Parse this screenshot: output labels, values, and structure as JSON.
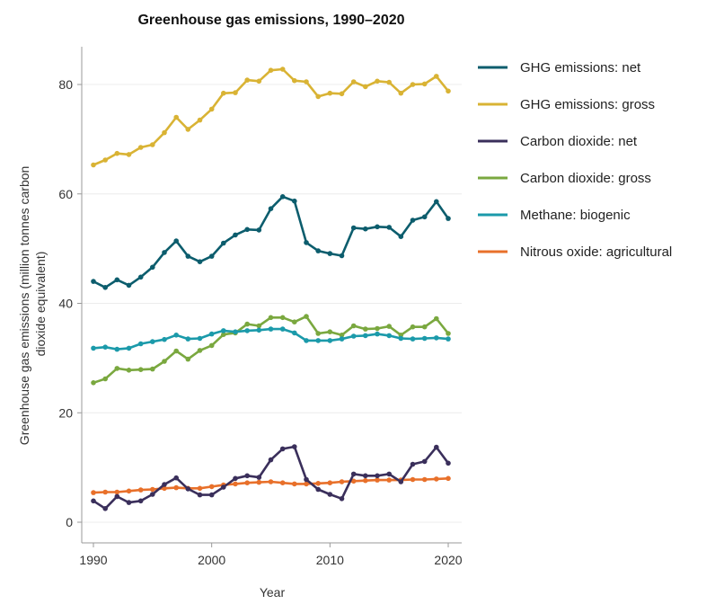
{
  "chart_data": {
    "type": "line",
    "title": "Greenhouse gas emissions, 1990–2020",
    "xlabel": "Year",
    "ylabel_lines": [
      "Greenhouse gas emissions (million tonnes carbon",
      "dioxide equivalent)"
    ],
    "xlim": [
      1990,
      2020
    ],
    "ylim": [
      0,
      85
    ],
    "x_ticks": [
      1990,
      2000,
      2010,
      2020
    ],
    "y_ticks": [
      0,
      20,
      40,
      60,
      80
    ],
    "grid": true,
    "legend_position": "right",
    "x": [
      1990,
      1991,
      1992,
      1993,
      1994,
      1995,
      1996,
      1997,
      1998,
      1999,
      2000,
      2001,
      2002,
      2003,
      2004,
      2005,
      2006,
      2007,
      2008,
      2009,
      2010,
      2011,
      2012,
      2013,
      2014,
      2015,
      2016,
      2017,
      2018,
      2019,
      2020
    ],
    "series": [
      {
        "name": "GHG emissions: net",
        "color": "#0c5d6d",
        "values": [
          44.0,
          42.9,
          44.3,
          43.3,
          44.8,
          46.6,
          49.3,
          51.4,
          48.6,
          47.6,
          48.6,
          51.0,
          52.5,
          53.5,
          53.4,
          57.3,
          59.5,
          58.7,
          51.1,
          49.6,
          49.1,
          48.7,
          53.8,
          53.6,
          54.0,
          53.9,
          52.2,
          55.2,
          55.8,
          58.6,
          55.5
        ]
      },
      {
        "name": "GHG emissions: gross",
        "color": "#d9b334",
        "values": [
          65.3,
          66.2,
          67.4,
          67.2,
          68.5,
          69.0,
          71.2,
          74.0,
          71.8,
          73.5,
          75.5,
          78.4,
          78.5,
          80.8,
          80.6,
          82.6,
          82.8,
          80.7,
          80.5,
          77.8,
          78.4,
          78.3,
          80.5,
          79.6,
          80.6,
          80.4,
          78.4,
          80.0,
          80.1,
          81.5,
          78.8
        ]
      },
      {
        "name": "Carbon dioxide: net",
        "color": "#3a2f5b",
        "values": [
          3.9,
          2.5,
          4.7,
          3.6,
          3.9,
          5.1,
          6.9,
          8.1,
          6.1,
          5.0,
          5.0,
          6.4,
          8.0,
          8.5,
          8.2,
          11.4,
          13.4,
          13.8,
          7.8,
          6.0,
          5.1,
          4.3,
          8.8,
          8.5,
          8.5,
          8.8,
          7.4,
          10.6,
          11.1,
          13.7,
          10.8
        ]
      },
      {
        "name": "Carbon dioxide: gross",
        "color": "#7aa83f",
        "values": [
          25.5,
          26.2,
          28.1,
          27.8,
          27.9,
          28.0,
          29.4,
          31.3,
          29.8,
          31.4,
          32.3,
          34.3,
          34.6,
          36.2,
          35.9,
          37.4,
          37.4,
          36.6,
          37.6,
          34.5,
          34.8,
          34.2,
          35.9,
          35.3,
          35.4,
          35.8,
          34.2,
          35.7,
          35.7,
          37.2,
          34.5
        ]
      },
      {
        "name": "Methane: biogenic",
        "color": "#1b9aaa",
        "values": [
          31.8,
          32.0,
          31.6,
          31.8,
          32.6,
          33.0,
          33.4,
          34.2,
          33.5,
          33.6,
          34.4,
          35.0,
          34.8,
          35.0,
          35.1,
          35.3,
          35.3,
          34.6,
          33.2,
          33.2,
          33.2,
          33.5,
          34.0,
          34.1,
          34.4,
          34.1,
          33.6,
          33.5,
          33.6,
          33.7,
          33.5
        ]
      },
      {
        "name": "Nitrous oxide: agricultural",
        "color": "#e8702a",
        "values": [
          5.4,
          5.5,
          5.5,
          5.7,
          5.9,
          6.0,
          6.2,
          6.3,
          6.2,
          6.2,
          6.5,
          6.8,
          7.0,
          7.2,
          7.3,
          7.4,
          7.2,
          7.0,
          7.0,
          7.1,
          7.2,
          7.4,
          7.5,
          7.6,
          7.7,
          7.7,
          7.7,
          7.8,
          7.8,
          7.9,
          8.0
        ]
      }
    ]
  }
}
